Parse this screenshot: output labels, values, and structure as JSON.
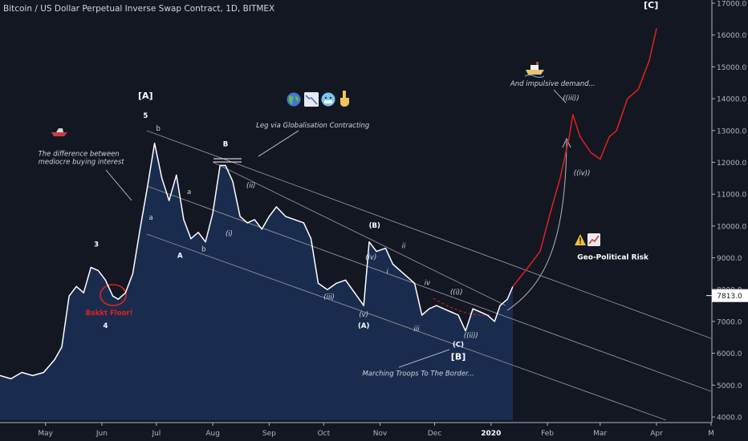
{
  "header": {
    "title": "Bitcoin / US Dollar Perpetual Inverse Swap Contract, 1D, BITMEX"
  },
  "price_tag": "7813.0",
  "chart_data": {
    "type": "line",
    "title": "Bitcoin / US Dollar Perpetual Inverse Swap Contract, 1D, BITMEX",
    "x_tick_labels": [
      "May",
      "Jun",
      "Jul",
      "Aug",
      "Sep",
      "Oct",
      "Nov",
      "Dec",
      "2020",
      "Feb",
      "Mar",
      "Apr",
      "M"
    ],
    "x_ticks": [
      "2019-05-01",
      "2019-06-01",
      "2019-07-01",
      "2019-08-01",
      "2019-09-01",
      "2019-10-01",
      "2019-11-01",
      "2019-12-01",
      "2020-01-01",
      "2020-02-01",
      "2020-03-01",
      "2020-04-01",
      "2020-05-01"
    ],
    "y_ticks": [
      4000,
      5000,
      6000,
      7000,
      8000,
      9000,
      10000,
      11000,
      12000,
      13000,
      14000,
      15000,
      16000,
      17000
    ],
    "y_tick_labels": [
      "4000.0",
      "5000.0",
      "6000.0",
      "7000.0",
      "8000.0",
      "9000.0",
      "10000.0",
      "11000.0",
      "12000.0",
      "13000.0",
      "14000.0",
      "15000.0",
      "16000.0",
      "17000.0"
    ],
    "ylim": [
      3900,
      17100
    ],
    "xlim": [
      "2019-04-06",
      "2020-05-01"
    ],
    "last_price": 7813.0,
    "series": [
      {
        "role": "price",
        "x": [
          "2019-04-06",
          "2019-04-12",
          "2019-04-18",
          "2019-04-24",
          "2019-04-30",
          "2019-05-06",
          "2019-05-10",
          "2019-05-14",
          "2019-05-18",
          "2019-05-22",
          "2019-05-26",
          "2019-05-30",
          "2019-06-03",
          "2019-06-07",
          "2019-06-10",
          "2019-06-14",
          "2019-06-18",
          "2019-06-22",
          "2019-06-26",
          "2019-06-30",
          "2019-07-04",
          "2019-07-08",
          "2019-07-12",
          "2019-07-16",
          "2019-07-20",
          "2019-07-24",
          "2019-07-28",
          "2019-08-01",
          "2019-08-05",
          "2019-08-08",
          "2019-08-12",
          "2019-08-16",
          "2019-08-20",
          "2019-08-24",
          "2019-08-28",
          "2019-09-01",
          "2019-09-05",
          "2019-09-10",
          "2019-09-15",
          "2019-09-20",
          "2019-09-24",
          "2019-09-28",
          "2019-10-03",
          "2019-10-08",
          "2019-10-13",
          "2019-10-18",
          "2019-10-23",
          "2019-10-26",
          "2019-10-30",
          "2019-11-04",
          "2019-11-08",
          "2019-11-12",
          "2019-11-16",
          "2019-11-20",
          "2019-11-24",
          "2019-11-28",
          "2019-12-02",
          "2019-12-06",
          "2019-12-10",
          "2019-12-14",
          "2019-12-18",
          "2019-12-22",
          "2019-12-26",
          "2019-12-30",
          "2020-01-03",
          "2020-01-06",
          "2020-01-10",
          "2020-01-13"
        ],
        "y": [
          5300,
          5200,
          5400,
          5300,
          5400,
          5800,
          6200,
          7800,
          8100,
          7900,
          8700,
          8600,
          8300,
          7800,
          7700,
          7900,
          8500,
          9900,
          11200,
          12600,
          11500,
          10800,
          11600,
          10200,
          9600,
          9800,
          9500,
          10400,
          11900,
          11900,
          11400,
          10300,
          10100,
          10200,
          9900,
          10300,
          10600,
          10300,
          10200,
          10100,
          9600,
          8200,
          8000,
          8200,
          8300,
          7900,
          7500,
          9500,
          9200,
          9300,
          8800,
          8600,
          8400,
          8200,
          7200,
          7400,
          7500,
          7400,
          7300,
          7200,
          6700,
          7400,
          7300,
          7200,
          7000,
          7500,
          7700,
          8100
        ]
      },
      {
        "role": "projection",
        "x": [
          "2020-01-13",
          "2020-01-20",
          "2020-01-28",
          "2020-02-03",
          "2020-02-08",
          "2020-02-13",
          "2020-02-15",
          "2020-02-19",
          "2020-02-25",
          "2020-03-01",
          "2020-03-06",
          "2020-03-10",
          "2020-03-16",
          "2020-03-22",
          "2020-03-28",
          "2020-04-01"
        ],
        "y": [
          8100,
          8600,
          9200,
          10500,
          11500,
          12800,
          13500,
          12800,
          12300,
          12100,
          12800,
          13000,
          14000,
          14300,
          15200,
          16200
        ]
      }
    ],
    "annotations": [
      {
        "text": "[A]",
        "x": "2019-06-25",
        "y": 14000
      },
      {
        "text": "5",
        "x": "2019-06-25",
        "y": 13400
      },
      {
        "text": "b",
        "x": "2019-07-02",
        "y": 13000
      },
      {
        "text": "a",
        "x": "2019-06-28",
        "y": 10200
      },
      {
        "text": "A",
        "x": "2019-07-14",
        "y": 9000
      },
      {
        "text": "a",
        "x": "2019-07-19",
        "y": 11000
      },
      {
        "text": "b",
        "x": "2019-07-27",
        "y": 9200
      },
      {
        "text": "B",
        "x": "2019-08-08",
        "y": 12500
      },
      {
        "text": "(ii)",
        "x": "2019-08-22",
        "y": 11200
      },
      {
        "text": "(i)",
        "x": "2019-08-10",
        "y": 9700
      },
      {
        "text": "(iii)",
        "x": "2019-10-04",
        "y": 7700
      },
      {
        "text": "(iv)",
        "x": "2019-10-27",
        "y": 8950
      },
      {
        "text": "(v)",
        "x": "2019-10-23",
        "y": 7150
      },
      {
        "text": "(A)",
        "x": "2019-10-23",
        "y": 6800
      },
      {
        "text": "(B)",
        "x": "2019-10-29",
        "y": 9950
      },
      {
        "text": "ii",
        "x": "2019-11-14",
        "y": 9300
      },
      {
        "text": "i",
        "x": "2019-11-05",
        "y": 8500
      },
      {
        "text": "iv",
        "x": "2019-11-27",
        "y": 8150
      },
      {
        "text": "iii",
        "x": "2019-11-21",
        "y": 6700
      },
      {
        "text": "((i))",
        "x": "2019-12-13",
        "y": 7850
      },
      {
        "text": "((ii))",
        "x": "2019-12-21",
        "y": 6500
      },
      {
        "text": "(C)",
        "x": "2019-12-14",
        "y": 6200
      },
      {
        "text": "[B]",
        "x": "2019-12-14",
        "y": 5800
      },
      {
        "text": "3",
        "x": "2019-05-29",
        "y": 9350
      },
      {
        "text": "4",
        "x": "2019-06-03",
        "y": 6800
      },
      {
        "text": "((iii))",
        "x": "2020-02-14",
        "y": 13950
      },
      {
        "text": "((iv))",
        "x": "2020-02-20",
        "y": 11600
      },
      {
        "text": "[C]",
        "x": "2020-03-29",
        "y": 16850
      },
      {
        "text": "Bakkt Floor!",
        "x": "2019-06-05",
        "y": 7200
      },
      {
        "text": "The difference between",
        "x": "2019-04-27",
        "y": 12200
      },
      {
        "text": "mediocre buying interest",
        "x": "2019-04-27",
        "y": 11950
      },
      {
        "text": "Leg via Globalisation Contracting",
        "x": "2019-09-25",
        "y": 13100
      },
      {
        "text": "And impulsive demand...",
        "x": "2020-02-04",
        "y": 14400
      },
      {
        "text": "Geo-Political Risk",
        "x": "2020-03-08",
        "y": 8950
      },
      {
        "text": "Marching Troops To The Border...",
        "x": "2019-11-22",
        "y": 5300
      }
    ]
  },
  "colors": {
    "background": "#131722",
    "area_fill": "#1a2c4e",
    "price_line": "#ffffff",
    "projection_line": "#e0221d",
    "channel_line": "#8e9199",
    "text": "#d1d4dc",
    "axis_text": "#b2b5be",
    "bakkt_circle": "#e0221d",
    "price_tag_bg": "#ffffff"
  },
  "icons": {
    "row": [
      "globe-icon",
      "chart-down-icon",
      "cold-face-icon",
      "point-down-icon"
    ],
    "boat": "speedboat-icon",
    "warning": "warning-icon",
    "chart_up": "chart-up-icon",
    "ship": "ship-icon"
  }
}
